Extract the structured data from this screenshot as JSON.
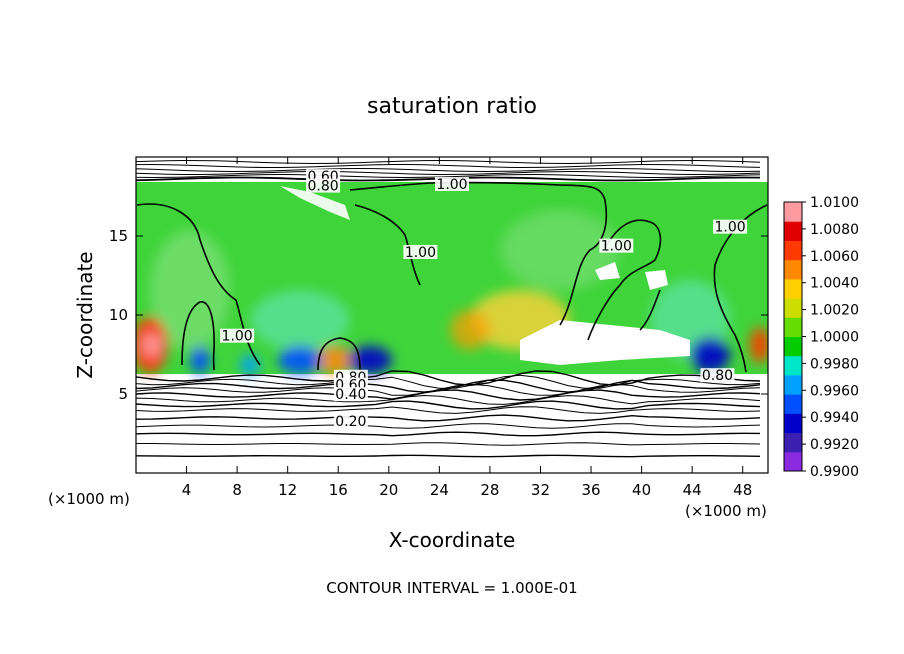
{
  "chart_data": {
    "type": "heatmap",
    "title": "saturation ratio",
    "xlabel": "X-coordinate",
    "ylabel": "Z-coordinate",
    "x_unit_left": "(×1000 m)",
    "x_unit_right": "(×1000 m)",
    "footer": "CONTOUR INTERVAL = 1.000E-01",
    "xlim": [
      0,
      50
    ],
    "ylim": [
      0,
      20
    ],
    "x_ticks": [
      "4",
      "8",
      "12",
      "16",
      "20",
      "24",
      "28",
      "32",
      "36",
      "40",
      "44",
      "48"
    ],
    "y_ticks": [
      "5",
      "10",
      "15"
    ],
    "colorbar": {
      "min": 0.99,
      "max": 1.01,
      "tick_labels": [
        "1.0100",
        "1.0080",
        "1.0060",
        "1.0040",
        "1.0020",
        "1.0000",
        "0.9980",
        "0.9960",
        "0.9940",
        "0.9920",
        "0.9900"
      ],
      "colors": [
        "#8a2be2",
        "#3b1fb0",
        "#0000c8",
        "#0050ff",
        "#00a0ff",
        "#00e6c8",
        "#00cc00",
        "#66dd00",
        "#ccdd00",
        "#ffd000",
        "#ff8800",
        "#ff3a00",
        "#e00000",
        "#ff9aa0"
      ]
    },
    "contour_labels": [
      {
        "text": "0.60",
        "x": 14.8,
        "z": 18.6
      },
      {
        "text": "0.80",
        "x": 14.8,
        "z": 18.0
      },
      {
        "text": "1.00",
        "x": 25.0,
        "z": 18.1
      },
      {
        "text": "1.00",
        "x": 22.5,
        "z": 13.8
      },
      {
        "text": "1.00",
        "x": 38.0,
        "z": 14.2
      },
      {
        "text": "1.00",
        "x": 47.0,
        "z": 15.4
      },
      {
        "text": "1.00",
        "x": 8.0,
        "z": 8.5
      },
      {
        "text": "0.80",
        "x": 17.0,
        "z": 5.9
      },
      {
        "text": "0.60",
        "x": 17.0,
        "z": 5.4
      },
      {
        "text": "0.40",
        "x": 17.0,
        "z": 4.8
      },
      {
        "text": "0.20",
        "x": 17.0,
        "z": 3.1
      },
      {
        "text": "0.80",
        "x": 46.0,
        "z": 6.0
      }
    ]
  }
}
